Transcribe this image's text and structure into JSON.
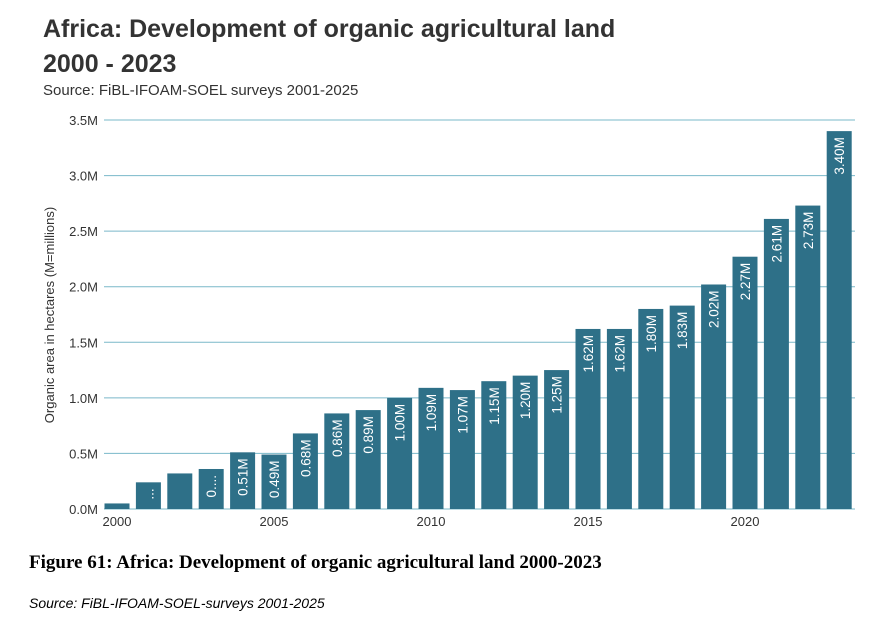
{
  "chart_data": {
    "type": "bar",
    "title_line1": "Africa: Development of organic agricultural land",
    "title_line2": "2000 - 2023",
    "subtitle": "Source: FiBL-IFOAM-SOEL surveys 2001-2025",
    "ylabel": "Organic area in hectares (M=millions)",
    "xlabel": "",
    "ylim": [
      0,
      3.5
    ],
    "yticks": [
      "0.0M",
      "0.5M",
      "1.0M",
      "1.5M",
      "2.0M",
      "2.5M",
      "3.0M",
      "3.5M"
    ],
    "xticks": [
      "2000",
      "2005",
      "2010",
      "2015",
      "2020"
    ],
    "categories": [
      2000,
      2001,
      2002,
      2003,
      2004,
      2005,
      2006,
      2007,
      2008,
      2009,
      2010,
      2011,
      2012,
      2013,
      2014,
      2015,
      2016,
      2017,
      2018,
      2019,
      2020,
      2021,
      2022,
      2023
    ],
    "values": [
      0.05,
      0.24,
      0.32,
      0.36,
      0.51,
      0.49,
      0.68,
      0.86,
      0.89,
      1.0,
      1.09,
      1.07,
      1.15,
      1.2,
      1.25,
      1.62,
      1.62,
      1.8,
      1.83,
      2.02,
      2.27,
      2.61,
      2.73,
      3.4
    ],
    "data_labels": [
      "",
      "...",
      "",
      "0....",
      "0.51M",
      "0.49M",
      "0.68M",
      "0.86M",
      "0.89M",
      "1.00M",
      "1.09M",
      "1.07M",
      "1.15M",
      "1.20M",
      "1.25M",
      "1.62M",
      "1.62M",
      "1.80M",
      "1.83M",
      "2.02M",
      "2.27M",
      "2.61M",
      "2.73M",
      "3.40M"
    ],
    "grid": true,
    "bar_color": "#2e7088",
    "grid_color": "#7ab8c9"
  },
  "caption": "Figure 61: Africa: Development of organic agricultural land 2000-2023",
  "source_note": "Source: FiBL-IFOAM-SOEL-surveys 2001-2025"
}
